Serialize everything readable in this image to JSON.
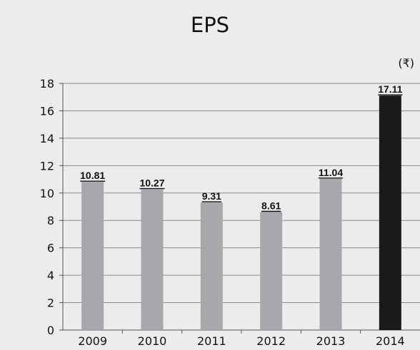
{
  "chart_data": {
    "type": "bar",
    "title": "EPS",
    "unit_label": "(₹)",
    "categories": [
      "2009",
      "2010",
      "2011",
      "2012",
      "2013",
      "2014"
    ],
    "values": [
      10.81,
      10.27,
      9.31,
      8.61,
      11.04,
      17.11
    ],
    "data_labels": [
      "10.81",
      "10.27",
      "9.31",
      "8.61",
      "11.04",
      "17.11"
    ],
    "y_ticks": [
      0,
      2,
      4,
      6,
      8,
      10,
      12,
      14,
      16,
      18
    ],
    "ylim": [
      0,
      18
    ],
    "grid": true,
    "colors": {
      "default_bar": "#a6a8ab",
      "highlight_bar": "#1a1a1a",
      "highlight_index": 5,
      "grid": "#8a8a8a",
      "axis": "#555555"
    }
  }
}
